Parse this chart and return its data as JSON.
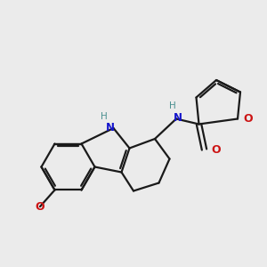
{
  "bg_color": "#ebebeb",
  "bond_color": "#1a1a1a",
  "n_color": "#1414cc",
  "o_color": "#cc1414",
  "nh_color": "#4a9090",
  "line_width": 1.6,
  "dbo": 0.09,
  "figsize": [
    3.0,
    3.0
  ],
  "dpi": 100,
  "xlim": [
    0,
    10
  ],
  "ylim": [
    0,
    10
  ],
  "font_size_nh": 8.0,
  "font_size_o": 9.0,
  "font_size_methoxy": 8.0
}
